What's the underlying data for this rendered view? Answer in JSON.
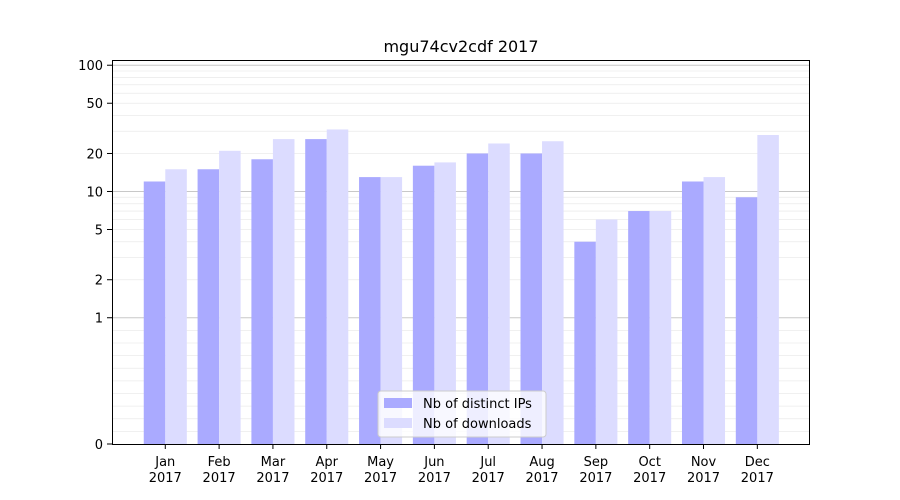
{
  "chart_data": {
    "type": "bar",
    "title": "mgu74cv2cdf 2017",
    "xlabel": "",
    "ylabel": "",
    "yscale": "symlog",
    "ylim": [
      0,
      110
    ],
    "yticks": [
      0,
      1,
      2,
      5,
      10,
      20,
      50,
      100
    ],
    "categories": [
      [
        "Jan",
        "2017"
      ],
      [
        "Feb",
        "2017"
      ],
      [
        "Mar",
        "2017"
      ],
      [
        "Apr",
        "2017"
      ],
      [
        "May",
        "2017"
      ],
      [
        "Jun",
        "2017"
      ],
      [
        "Jul",
        "2017"
      ],
      [
        "Aug",
        "2017"
      ],
      [
        "Sep",
        "2017"
      ],
      [
        "Oct",
        "2017"
      ],
      [
        "Nov",
        "2017"
      ],
      [
        "Dec",
        "2017"
      ]
    ],
    "series": [
      {
        "name": "Nb of distinct IPs",
        "color": "#aaaaff",
        "values": [
          12,
          15,
          18,
          26,
          13,
          16,
          20,
          20,
          4,
          7,
          12,
          9
        ]
      },
      {
        "name": "Nb of downloads",
        "color": "#dcdcff",
        "values": [
          15,
          21,
          26,
          31,
          13,
          17,
          24,
          25,
          6,
          7,
          13,
          28
        ]
      }
    ],
    "legend": "lower-center",
    "grid": true
  }
}
